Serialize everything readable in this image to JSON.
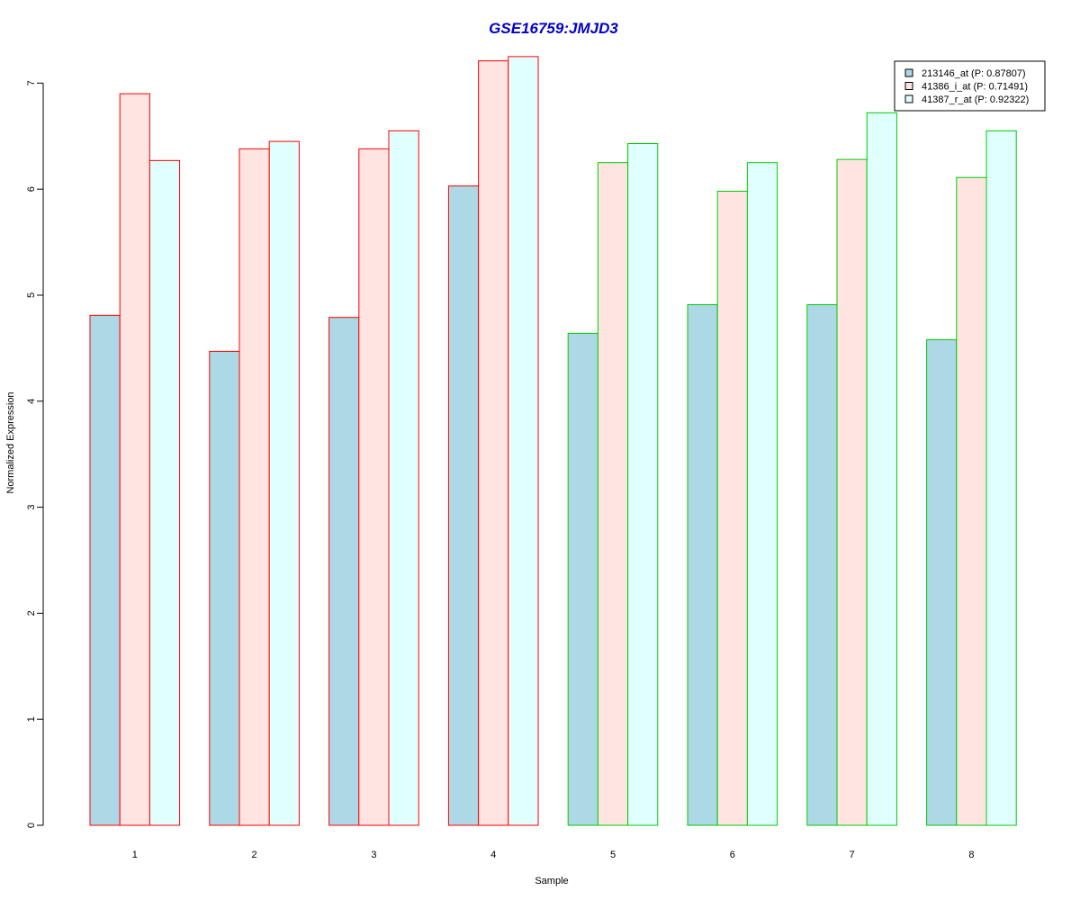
{
  "chart_data": {
    "type": "bar",
    "title": "GSE16759:JMJD3",
    "xlabel": "Sample",
    "ylabel": "Normalized Expression",
    "categories": [
      "1",
      "2",
      "3",
      "4",
      "5",
      "6",
      "7",
      "8"
    ],
    "ylim": [
      0,
      7.3
    ],
    "yticks": [
      "0",
      "1",
      "2",
      "3",
      "4",
      "5",
      "6",
      "7"
    ],
    "grid": false,
    "legend_position": "top-right",
    "series": [
      {
        "name": "213146_at (P: 0.87807)",
        "fill": "#add8e6",
        "values": [
          4.81,
          4.47,
          4.79,
          6.03,
          4.64,
          4.91,
          4.91,
          4.58
        ]
      },
      {
        "name": "41386_i_at (P: 0.71491)",
        "fill": "#ffe4e1",
        "values": [
          6.9,
          6.38,
          6.38,
          7.21,
          6.25,
          5.98,
          6.28,
          6.11
        ]
      },
      {
        "name": "41387_r_at (P: 0.92322)",
        "fill": "#e0ffff",
        "values": [
          6.27,
          6.45,
          6.55,
          7.25,
          6.43,
          6.25,
          6.72,
          6.55
        ]
      }
    ],
    "group_border_colors": [
      "#ff0000",
      "#ff0000",
      "#ff0000",
      "#ff0000",
      "#00cc00",
      "#00cc00",
      "#00cc00",
      "#00cc00"
    ],
    "title_color": "#0000cc"
  }
}
